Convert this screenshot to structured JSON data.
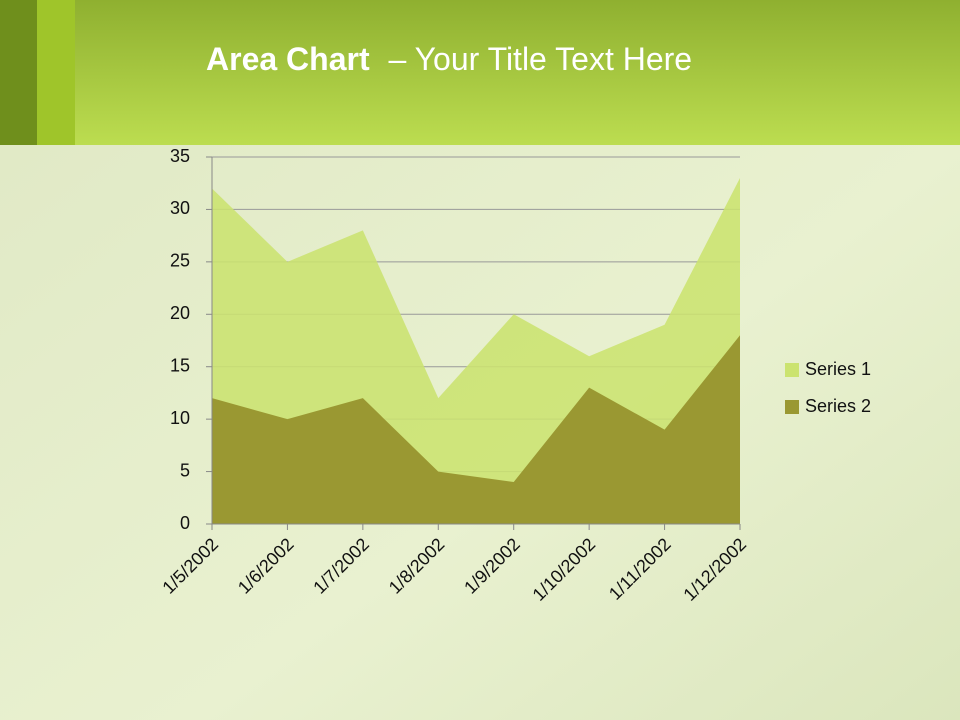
{
  "chart_data": {
    "type": "area",
    "title_emphasis": "Area Chart",
    "title": "– Your Title Text Here",
    "categories": [
      "1/5/2002",
      "1/6/2002",
      "1/7/2002",
      "1/8/2002",
      "1/9/2002",
      "1/10/2002",
      "1/11/2002",
      "1/12/2002"
    ],
    "series": [
      {
        "name": "Series 1",
        "color": "#cbe36f",
        "values": [
          32,
          25,
          28,
          12,
          20,
          16,
          19,
          33
        ]
      },
      {
        "name": "Series 2",
        "color": "#9a9832",
        "values": [
          12,
          10,
          12,
          5,
          4,
          13,
          9,
          18
        ]
      }
    ],
    "ylim": [
      0,
      35
    ],
    "yticks": [
      0,
      5,
      10,
      15,
      20,
      25,
      30,
      35
    ],
    "grid": true,
    "legend": "right"
  }
}
